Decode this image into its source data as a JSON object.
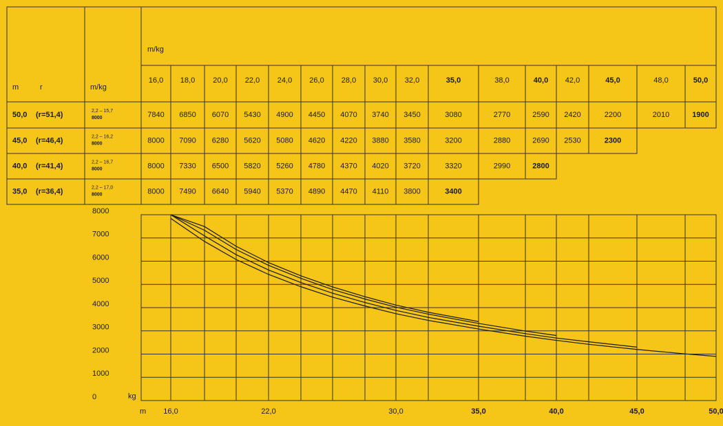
{
  "table": {
    "header": {
      "length": "m",
      "radius": "r",
      "range_unit": "m/kg",
      "unit": "m/kg"
    },
    "columns": [
      "16,0",
      "18,0",
      "20,0",
      "22,0",
      "24,0",
      "26,0",
      "28,0",
      "30,0",
      "32,0",
      "35,0",
      "38,0",
      "40,0",
      "42,0",
      "45,0",
      "48,0",
      "50,0"
    ],
    "rows": [
      {
        "length": "50,0",
        "radius": "(r=51,4)",
        "range": "2,2 – 15,7",
        "max": "8000",
        "loads": [
          7840,
          6850,
          6070,
          5430,
          4900,
          4450,
          4070,
          3740,
          3450,
          3080,
          2770,
          2590,
          2420,
          2200,
          2010,
          1900
        ]
      },
      {
        "length": "45,0",
        "radius": "(r=46,4)",
        "range": "2,2 – 16,2",
        "max": "8000",
        "loads": [
          8000,
          7090,
          6280,
          5620,
          5080,
          4620,
          4220,
          3880,
          3580,
          3200,
          2880,
          2690,
          2530,
          2300
        ]
      },
      {
        "length": "40,0",
        "radius": "(r=41,4)",
        "range": "2,2 – 16,7",
        "max": "8000",
        "loads": [
          8000,
          7330,
          6500,
          5820,
          5260,
          4780,
          4370,
          4020,
          3720,
          3320,
          2990,
          2800
        ]
      },
      {
        "length": "35,0",
        "radius": "(r=36,4)",
        "range": "2,2 – 17,0",
        "max": "8000",
        "loads": [
          8000,
          7490,
          6640,
          5940,
          5370,
          4890,
          4470,
          4110,
          3800,
          3400
        ]
      }
    ]
  },
  "chart_data": {
    "type": "line",
    "xlabel": "m",
    "ylabel": "kg",
    "x": [
      16,
      18,
      20,
      22,
      24,
      26,
      28,
      30,
      32,
      35,
      38,
      40,
      42,
      45,
      48,
      50
    ],
    "xlim": [
      14,
      50
    ],
    "xticks": [
      {
        "value": 16,
        "label": "16,0"
      },
      {
        "value": 22,
        "label": "22,0"
      },
      {
        "value": 30,
        "label": "30,0"
      },
      {
        "value": 35,
        "label": "35,0"
      },
      {
        "value": 40,
        "label": "40,0"
      },
      {
        "value": 45,
        "label": "45,0"
      },
      {
        "value": 50,
        "label": "50,0"
      }
    ],
    "ylim": [
      0,
      8000
    ],
    "yticks": [
      0,
      1000,
      2000,
      3000,
      4000,
      5000,
      6000,
      7000,
      8000
    ],
    "color": "#1a1a1a",
    "series": [
      {
        "values": [
          7840,
          6850,
          6070,
          5430,
          4900,
          4450,
          4070,
          3740,
          3450,
          3080,
          2770,
          2590,
          2420,
          2200,
          2010,
          1900
        ]
      },
      {
        "values": [
          8000,
          7090,
          6280,
          5620,
          5080,
          4620,
          4220,
          3880,
          3580,
          3200,
          2880,
          2690,
          2530,
          2300,
          null,
          null
        ]
      },
      {
        "values": [
          8000,
          7330,
          6500,
          5820,
          5260,
          4780,
          4370,
          4020,
          3720,
          3320,
          2990,
          2800,
          null,
          null,
          null,
          null
        ]
      },
      {
        "values": [
          8000,
          7490,
          6640,
          5940,
          5370,
          4890,
          4470,
          4110,
          3800,
          3400,
          null,
          null,
          null,
          null,
          null,
          null
        ]
      }
    ]
  }
}
